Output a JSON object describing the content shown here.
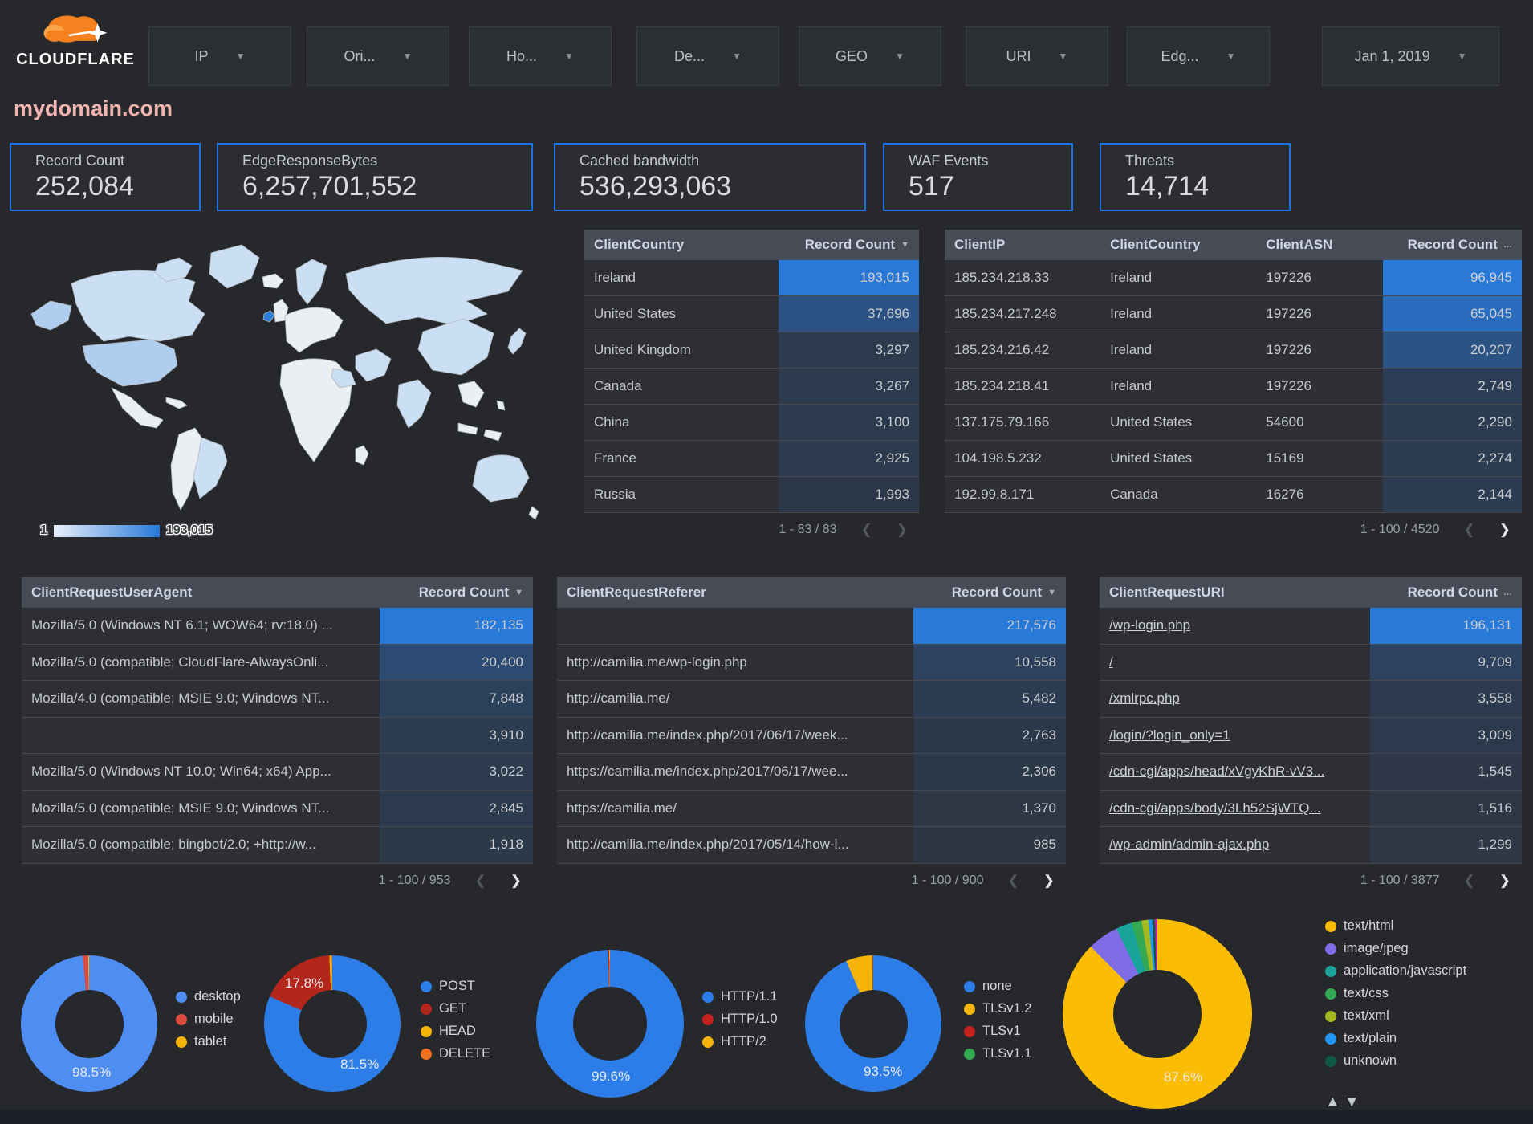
{
  "topbar": {
    "brand": "CLOUDFLARE",
    "filters": [
      {
        "label": "IP"
      },
      {
        "label": "Ori..."
      },
      {
        "label": "Ho..."
      },
      {
        "label": "De..."
      },
      {
        "label": "GEO"
      },
      {
        "label": "URI"
      },
      {
        "label": "Edg..."
      },
      {
        "label": "Jan 1, 2019"
      }
    ]
  },
  "page_title": "mydomain.com",
  "scorecards": [
    {
      "label": "Record Count",
      "value": "252,084"
    },
    {
      "label": "EdgeResponseBytes",
      "value": "6,257,701,552"
    },
    {
      "label": "Cached bandwidth",
      "value": "536,293,063"
    },
    {
      "label": "WAF Events",
      "value": "517"
    },
    {
      "label": "Threats",
      "value": "14,714"
    }
  ],
  "map": {
    "legend_min": "1",
    "legend_max": "193,015"
  },
  "icons": {
    "chevron_left": "❮",
    "chevron_right": "❯",
    "sort_desc": "▼",
    "sort_more": "…",
    "dropdown": "▼",
    "legend_up": "▲",
    "legend_down": "▼"
  },
  "tables": {
    "client_country": {
      "columns": [
        {
          "label": "ClientCountry"
        },
        {
          "label": "Record Count",
          "numeric": true,
          "sort": "desc",
          "heat": true
        }
      ],
      "rows": [
        [
          "Ireland",
          "193,015"
        ],
        [
          "United States",
          "37,696"
        ],
        [
          "United Kingdom",
          "3,297"
        ],
        [
          "Canada",
          "3,267"
        ],
        [
          "China",
          "3,100"
        ],
        [
          "France",
          "2,925"
        ],
        [
          "Russia",
          "1,993"
        ]
      ],
      "pagination": {
        "range": "1 - 83 / 83",
        "prev_enabled": false,
        "next_enabled": false
      }
    },
    "client_ip": {
      "columns": [
        {
          "label": "ClientIP"
        },
        {
          "label": "ClientCountry"
        },
        {
          "label": "ClientASN"
        },
        {
          "label": "Record Count",
          "numeric": true,
          "sort": "more",
          "heat": true
        }
      ],
      "rows": [
        [
          "185.234.218.33",
          "Ireland",
          "197226",
          "96,945"
        ],
        [
          "185.234.217.248",
          "Ireland",
          "197226",
          "65,045"
        ],
        [
          "185.234.216.42",
          "Ireland",
          "197226",
          "20,207"
        ],
        [
          "185.234.218.41",
          "Ireland",
          "197226",
          "2,749"
        ],
        [
          "137.175.79.166",
          "United States",
          "54600",
          "2,290"
        ],
        [
          "104.198.5.232",
          "United States",
          "15169",
          "2,274"
        ],
        [
          "192.99.8.171",
          "Canada",
          "16276",
          "2,144"
        ]
      ],
      "pagination": {
        "range": "1 - 100 / 4520",
        "prev_enabled": false,
        "next_enabled": true
      }
    },
    "user_agent": {
      "columns": [
        {
          "label": "ClientRequestUserAgent"
        },
        {
          "label": "Record Count",
          "numeric": true,
          "sort": "desc",
          "heat": true
        }
      ],
      "rows": [
        [
          "Mozilla/5.0 (Windows NT 6.1; WOW64; rv:18.0) ...",
          "182,135"
        ],
        [
          "Mozilla/5.0 (compatible; CloudFlare-AlwaysOnli...",
          "20,400"
        ],
        [
          "Mozilla/4.0 (compatible; MSIE 9.0; Windows NT...",
          "7,848"
        ],
        [
          "",
          "3,910"
        ],
        [
          "Mozilla/5.0 (Windows NT 10.0; Win64; x64) App...",
          "3,022"
        ],
        [
          "Mozilla/5.0 (compatible; MSIE 9.0; Windows NT...",
          "2,845"
        ],
        [
          "Mozilla/5.0 (compatible; bingbot/2.0; +http://w...",
          "1,918"
        ]
      ],
      "pagination": {
        "range": "1 - 100 / 953",
        "prev_enabled": false,
        "next_enabled": true
      }
    },
    "referer": {
      "columns": [
        {
          "label": "ClientRequestReferer"
        },
        {
          "label": "Record Count",
          "numeric": true,
          "sort": "desc",
          "heat": true
        }
      ],
      "rows": [
        [
          "",
          "217,576"
        ],
        [
          "http://camilia.me/wp-login.php",
          "10,558"
        ],
        [
          "http://camilia.me/",
          "5,482"
        ],
        [
          "http://camilia.me/index.php/2017/06/17/week...",
          "2,763"
        ],
        [
          "https://camilia.me/index.php/2017/06/17/wee...",
          "2,306"
        ],
        [
          "https://camilia.me/",
          "1,370"
        ],
        [
          "http://camilia.me/index.php/2017/05/14/how-i...",
          "985"
        ]
      ],
      "pagination": {
        "range": "1 - 100 / 900",
        "prev_enabled": false,
        "next_enabled": true
      }
    },
    "uri": {
      "link_col": 0,
      "columns": [
        {
          "label": "ClientRequestURI"
        },
        {
          "label": "Record Count",
          "numeric": true,
          "sort": "more",
          "heat": true
        }
      ],
      "rows": [
        [
          "/wp-login.php",
          "196,131"
        ],
        [
          "/",
          "9,709"
        ],
        [
          "/xmlrpc.php",
          "3,558"
        ],
        [
          "/login/?login_only=1",
          "3,009"
        ],
        [
          "/cdn-cgi/apps/head/xVgyKhR-vV3...",
          "1,545"
        ],
        [
          "/cdn-cgi/apps/body/3Lh52SjWTQ...",
          "1,516"
        ],
        [
          "/wp-admin/admin-ajax.php",
          "1,299"
        ]
      ],
      "pagination": {
        "range": "1 - 100 / 3877",
        "prev_enabled": false,
        "next_enabled": true
      }
    }
  },
  "donuts": [
    {
      "name": "device-type",
      "slices": [
        {
          "label": "desktop",
          "color": "#4e8df2",
          "value": 98.5,
          "pct": "98.5%"
        },
        {
          "label": "mobile",
          "color": "#dc4b3e",
          "value": 1.3
        },
        {
          "label": "tablet",
          "color": "#f2b50a",
          "value": 0.2
        }
      ]
    },
    {
      "name": "http-method",
      "slices": [
        {
          "label": "POST",
          "color": "#2d7de9",
          "value": 81.5,
          "pct": "81.5%"
        },
        {
          "label": "GET",
          "color": "#b3261c",
          "value": 17.8,
          "pct": "17.8%"
        },
        {
          "label": "HEAD",
          "color": "#f5b40a",
          "value": 0.55
        },
        {
          "label": "DELETE",
          "color": "#f0701e",
          "value": 0.15
        }
      ]
    },
    {
      "name": "http-version",
      "slices": [
        {
          "label": "HTTP/1.1",
          "color": "#2d7de9",
          "value": 99.6,
          "pct": "99.6%"
        },
        {
          "label": "HTTP/1.0",
          "color": "#c5221f",
          "value": 0.25
        },
        {
          "label": "HTTP/2",
          "color": "#f5b40a",
          "value": 0.15
        }
      ]
    },
    {
      "name": "tls-version",
      "slices": [
        {
          "label": "none",
          "color": "#2d7de9",
          "value": 93.5,
          "pct": "93.5%"
        },
        {
          "label": "TLSv1.2",
          "color": "#f5b40a",
          "value": 6.2
        },
        {
          "label": "TLSv1",
          "color": "#c5221f",
          "value": 0.2
        },
        {
          "label": "TLSv1.1",
          "color": "#34a853",
          "value": 0.1
        }
      ]
    },
    {
      "name": "content-type",
      "slices": [
        {
          "label": "text/html",
          "color": "#fbbc04",
          "value": 87.6,
          "pct": "87.6%"
        },
        {
          "label": "image/jpeg",
          "color": "#7f6de8",
          "value": 5.3
        },
        {
          "label": "application/javascript",
          "color": "#18a39b",
          "value": 2.7
        },
        {
          "label": "text/css",
          "color": "#34a853",
          "value": 1.7
        },
        {
          "label": "text/xml",
          "color": "#a4b81f",
          "value": 1.2
        },
        {
          "label": "text/plain",
          "color": "#2196f3",
          "value": 0.6
        },
        {
          "label": "unknown",
          "color": "#0e5a47",
          "value": 0.5
        },
        {
          "label": "",
          "color": "#d6199a",
          "value": 0.4,
          "no_legend": true
        }
      ]
    }
  ]
}
